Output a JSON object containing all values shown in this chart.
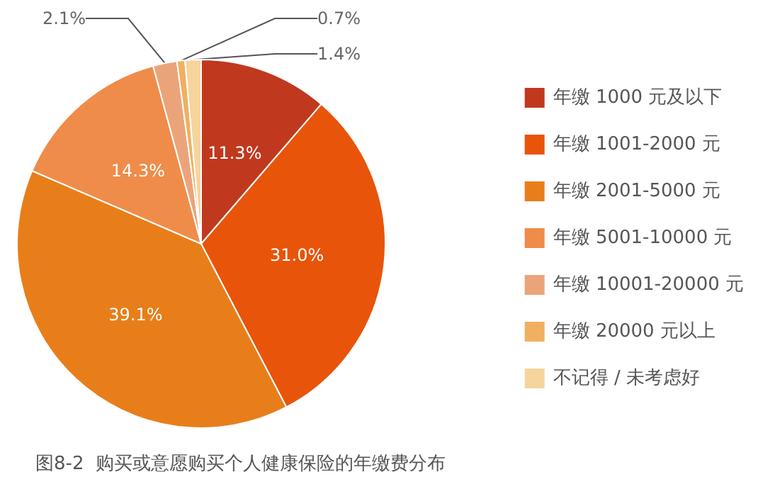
{
  "chart_data": {
    "type": "pie",
    "title": "图8-2  购买或意愿购买个人健康保险的年缴费分布",
    "categories": [
      "年缴 1000 元及以下",
      "年缴 1001-2000 元",
      "年缴 2001-5000 元",
      "年缴 5001-10000 元",
      "年缴 10001-20000 元",
      "年缴 20000 元以上",
      "不记得 / 未考虑好"
    ],
    "values": [
      11.3,
      31.0,
      39.1,
      14.3,
      2.1,
      0.7,
      1.4
    ],
    "value_labels": [
      "11.3%",
      "31.0%",
      "39.1%",
      "14.3%",
      "2.1%",
      "0.7%",
      "1.4%"
    ],
    "colors": [
      "#c0391e",
      "#e8540a",
      "#e87e1a",
      "#ef8c4a",
      "#eba47a",
      "#f0b060",
      "#f5d49e"
    ],
    "legend": "right"
  }
}
